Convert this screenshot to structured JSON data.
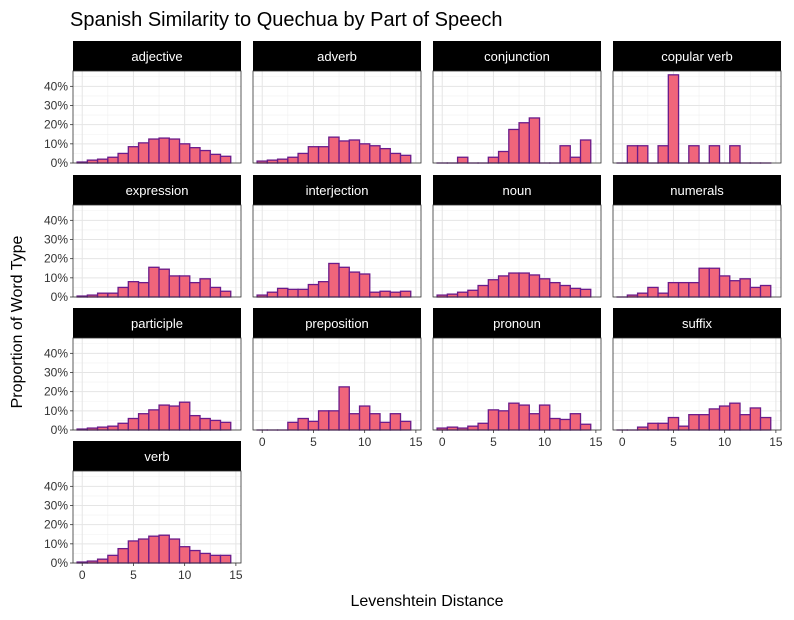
{
  "chart_data": {
    "type": "bar",
    "title": "Spanish Similarity to Quechua by Part of Speech",
    "xlabel": "Levenshtein Distance",
    "ylabel": "Proportion of Word Type",
    "x_bins": [
      0,
      1,
      2,
      3,
      4,
      5,
      6,
      7,
      8,
      9,
      10,
      11,
      12,
      13,
      14
    ],
    "x_ticks": [
      0,
      5,
      10,
      15
    ],
    "x_tick_labels": [
      "0",
      "5",
      "10",
      "15"
    ],
    "ylim": [
      0,
      0.48
    ],
    "y_ticks": [
      0,
      0.1,
      0.2,
      0.3,
      0.4
    ],
    "y_tick_labels": [
      "0%",
      "10%",
      "20%",
      "30%",
      "40%"
    ],
    "grid": true,
    "colors": {
      "bar_fill": "#f0657b",
      "bar_stroke": "#6a1b8a",
      "strip_bg": "#000000",
      "grid": "#e5e5e5"
    },
    "panels": [
      {
        "name": "adjective",
        "values": [
          0.005,
          0.015,
          0.02,
          0.03,
          0.05,
          0.085,
          0.105,
          0.125,
          0.13,
          0.125,
          0.1,
          0.08,
          0.065,
          0.045,
          0.035
        ]
      },
      {
        "name": "adverb",
        "values": [
          0.01,
          0.015,
          0.02,
          0.03,
          0.05,
          0.085,
          0.085,
          0.135,
          0.115,
          0.12,
          0.1,
          0.09,
          0.075,
          0.05,
          0.04
        ]
      },
      {
        "name": "conjunction",
        "values": [
          0,
          0,
          0.03,
          0,
          0,
          0.03,
          0.06,
          0.175,
          0.21,
          0.235,
          0,
          0,
          0.09,
          0.03,
          0.12
        ]
      },
      {
        "name": "copular verb",
        "values": [
          0,
          0.09,
          0.09,
          0,
          0.09,
          0.46,
          0,
          0.09,
          0,
          0.09,
          0,
          0.09,
          0,
          0,
          0
        ]
      },
      {
        "name": "expression",
        "values": [
          0.005,
          0.01,
          0.02,
          0.02,
          0.05,
          0.08,
          0.075,
          0.155,
          0.145,
          0.11,
          0.11,
          0.075,
          0.095,
          0.05,
          0.03
        ]
      },
      {
        "name": "interjection",
        "values": [
          0.01,
          0.025,
          0.045,
          0.04,
          0.04,
          0.065,
          0.08,
          0.175,
          0.155,
          0.13,
          0.12,
          0.025,
          0.03,
          0.025,
          0.03
        ]
      },
      {
        "name": "noun",
        "values": [
          0.01,
          0.015,
          0.025,
          0.035,
          0.06,
          0.09,
          0.11,
          0.125,
          0.125,
          0.115,
          0.095,
          0.075,
          0.06,
          0.045,
          0.04
        ]
      },
      {
        "name": "numerals",
        "values": [
          0,
          0.01,
          0.02,
          0.05,
          0.02,
          0.075,
          0.075,
          0.075,
          0.15,
          0.15,
          0.11,
          0.085,
          0.095,
          0.05,
          0.06
        ]
      },
      {
        "name": "participle",
        "values": [
          0.005,
          0.01,
          0.015,
          0.02,
          0.035,
          0.06,
          0.085,
          0.105,
          0.13,
          0.125,
          0.145,
          0.075,
          0.06,
          0.05,
          0.04
        ]
      },
      {
        "name": "preposition",
        "values": [
          0,
          0,
          0,
          0.04,
          0.06,
          0.045,
          0.1,
          0.1,
          0.225,
          0.085,
          0.125,
          0.085,
          0.04,
          0.085,
          0.045
        ]
      },
      {
        "name": "pronoun",
        "values": [
          0.01,
          0.015,
          0.01,
          0.02,
          0.035,
          0.105,
          0.1,
          0.14,
          0.13,
          0.085,
          0.13,
          0.06,
          0.055,
          0.085,
          0.03
        ]
      },
      {
        "name": "suffix",
        "values": [
          0,
          0,
          0.015,
          0.035,
          0.035,
          0.065,
          0.02,
          0.08,
          0.08,
          0.11,
          0.125,
          0.14,
          0.08,
          0.115,
          0.065
        ]
      },
      {
        "name": "verb",
        "values": [
          0.005,
          0.01,
          0.02,
          0.04,
          0.075,
          0.115,
          0.125,
          0.14,
          0.145,
          0.125,
          0.085,
          0.065,
          0.05,
          0.04,
          0.04
        ]
      }
    ]
  }
}
